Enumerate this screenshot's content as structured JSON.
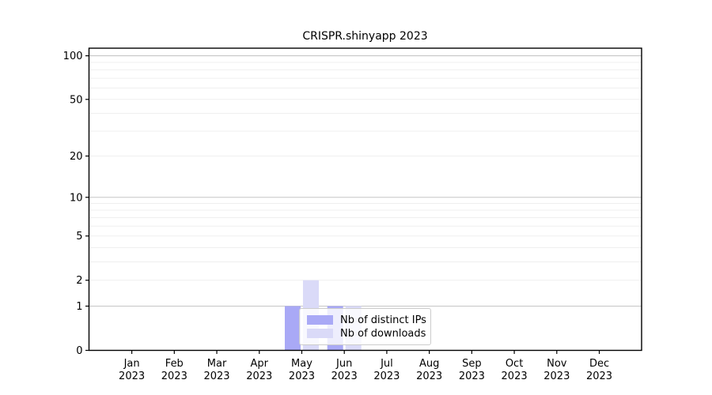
{
  "chart_data": {
    "type": "bar",
    "title": "CRISPR.shinyapp 2023",
    "categories": [
      "Jan",
      "Feb",
      "Mar",
      "Apr",
      "May",
      "Jun",
      "Jul",
      "Aug",
      "Sep",
      "Oct",
      "Nov",
      "Dec"
    ],
    "x_year_label": "2023",
    "series": [
      {
        "name": "Nb of distinct IPs",
        "color": "#a9a9f6",
        "values": [
          0,
          0,
          0,
          0,
          1,
          1,
          0,
          0,
          0,
          0,
          0,
          0
        ]
      },
      {
        "name": "Nb of downloads",
        "color": "#dadaf8",
        "values": [
          0,
          0,
          0,
          0,
          2,
          1,
          0,
          0,
          0,
          0,
          0,
          0
        ]
      }
    ],
    "yscale": "log1p",
    "yticks": [
      0,
      1,
      2,
      5,
      10,
      20,
      50,
      100
    ],
    "ylim": [
      0,
      112
    ],
    "grid": "horizontal, minor lines light gray, decade lines (1,10,100) darker",
    "legend_position": "lower-center-inside",
    "xlabel": "",
    "ylabel": ""
  }
}
